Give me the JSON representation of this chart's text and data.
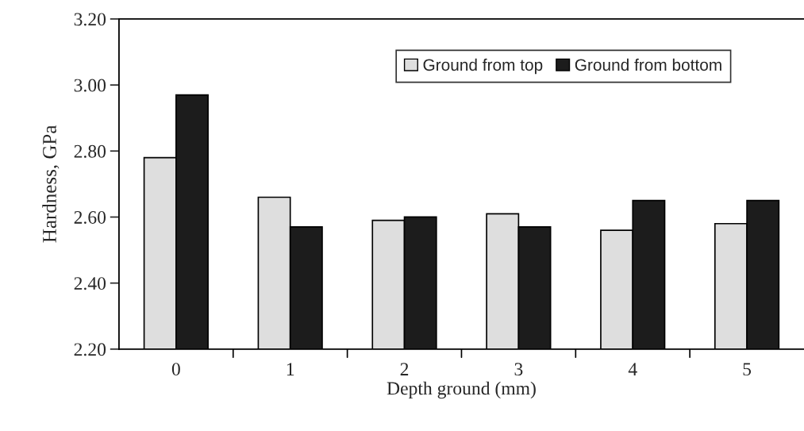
{
  "chart_data": {
    "type": "bar",
    "xlabel": "Depth ground (mm)",
    "ylabel": "Hardness, GPa",
    "categories": [
      "0",
      "1",
      "2",
      "3",
      "4",
      "5"
    ],
    "series": [
      {
        "name": "Ground from top",
        "color": "#dedede",
        "values": [
          2.78,
          2.66,
          2.59,
          2.61,
          2.56,
          2.58
        ]
      },
      {
        "name": "Ground from bottom",
        "color": "#1c1c1c",
        "values": [
          2.97,
          2.57,
          2.6,
          2.57,
          2.65,
          2.65
        ]
      }
    ],
    "ylim": [
      2.2,
      3.2
    ],
    "yticks": [
      {
        "value": 2.2,
        "label": "2.20"
      },
      {
        "value": 2.4,
        "label": "2.40"
      },
      {
        "value": 2.6,
        "label": "2.60"
      },
      {
        "value": 2.8,
        "label": "2.80"
      },
      {
        "value": 3.0,
        "label": "3.00"
      },
      {
        "value": 3.2,
        "label": "3.20"
      }
    ],
    "grid": false,
    "legend": "top right"
  }
}
